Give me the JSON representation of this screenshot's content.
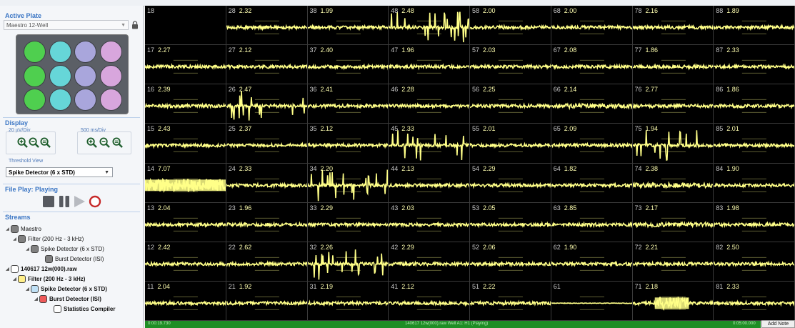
{
  "left_panel": {
    "active_plate": {
      "title": "Active Plate",
      "plate_type": "Maestro 12-Well"
    },
    "plate_wells": [
      {
        "id": "A1",
        "color": "#4fcf4f"
      },
      {
        "id": "A2",
        "color": "#66d6d8"
      },
      {
        "id": "A3",
        "color": "#a9a6dc"
      },
      {
        "id": "A4",
        "color": "#d8a6dd"
      },
      {
        "id": "B1",
        "color": "#4fcf4f"
      },
      {
        "id": "B2",
        "color": "#66d6d8"
      },
      {
        "id": "B3",
        "color": "#a9a6dc"
      },
      {
        "id": "B4",
        "color": "#d8a6dd"
      },
      {
        "id": "C1",
        "color": "#4fcf4f"
      },
      {
        "id": "C2",
        "color": "#66d6d8"
      },
      {
        "id": "C3",
        "color": "#a9a6dc"
      },
      {
        "id": "C4",
        "color": "#d8a6dd"
      }
    ],
    "display": {
      "title": "Display",
      "voltage_scale": "20 µV/Div",
      "time_scale": "500 ms/Div",
      "threshold_view_label": "Threshold View",
      "threshold_view_value": "Spike Detector (6 x STD)"
    },
    "file_play": {
      "title": "File Play: Playing"
    },
    "streams": {
      "title": "Streams",
      "items": [
        {
          "label": "Maestro",
          "color": "#808080",
          "bold": false,
          "arrow": "◢"
        },
        {
          "label": "Filter (200 Hz - 3 kHz)",
          "color": "#808080",
          "bold": false,
          "arrow": "◢"
        },
        {
          "label": "Spike Detector (6 x STD)",
          "color": "#808080",
          "bold": false,
          "arrow": "◢"
        },
        {
          "label": "Burst Detector (ISI)",
          "color": "#808080",
          "bold": false,
          "arrow": ""
        },
        {
          "label": "140617 12w(000).raw",
          "color": "#ffffff",
          "bold": true,
          "arrow": "◢"
        },
        {
          "label": "Filter (200 Hz - 3 kHz)",
          "color": "#ffef8a",
          "bold": true,
          "arrow": "◢"
        },
        {
          "label": "Spike Detector (6 x STD)",
          "color": "#bfe0f5",
          "bold": true,
          "arrow": "◢"
        },
        {
          "label": "Burst Detector (ISI)",
          "color": "#ee5a5a",
          "bold": true,
          "arrow": "◢"
        },
        {
          "label": "Statistics Compiler",
          "color": "#ffffff",
          "bold": true,
          "arrow": ""
        }
      ]
    }
  },
  "electrode_grid": {
    "trace_color": "#ffff88",
    "rows": [
      [
        {
          "id": "18",
          "value": ""
        },
        {
          "id": "28",
          "value": "2.32"
        },
        {
          "id": "38",
          "value": "1.99"
        },
        {
          "id": "48",
          "value": "2.48"
        },
        {
          "id": "58",
          "value": "2.00"
        },
        {
          "id": "68",
          "value": "2.00"
        },
        {
          "id": "78",
          "value": "2.16"
        },
        {
          "id": "88",
          "value": "1.89"
        }
      ],
      [
        {
          "id": "17",
          "value": "2.27"
        },
        {
          "id": "27",
          "value": "2.12"
        },
        {
          "id": "37",
          "value": "2.40"
        },
        {
          "id": "47",
          "value": "1.96"
        },
        {
          "id": "57",
          "value": "2.03"
        },
        {
          "id": "67",
          "value": "2.08"
        },
        {
          "id": "77",
          "value": "1.86"
        },
        {
          "id": "87",
          "value": "2.33"
        }
      ],
      [
        {
          "id": "16",
          "value": "2.39"
        },
        {
          "id": "26",
          "value": "2.47"
        },
        {
          "id": "36",
          "value": "2.41"
        },
        {
          "id": "46",
          "value": "2.28"
        },
        {
          "id": "56",
          "value": "2.25"
        },
        {
          "id": "66",
          "value": "2.14"
        },
        {
          "id": "76",
          "value": "2.77"
        },
        {
          "id": "86",
          "value": "1.86"
        }
      ],
      [
        {
          "id": "15",
          "value": "2.43"
        },
        {
          "id": "25",
          "value": "2.37"
        },
        {
          "id": "35",
          "value": "2.12"
        },
        {
          "id": "45",
          "value": "2.33"
        },
        {
          "id": "55",
          "value": "2.01"
        },
        {
          "id": "65",
          "value": "2.09"
        },
        {
          "id": "75",
          "value": "1.94"
        },
        {
          "id": "85",
          "value": "2.01"
        }
      ],
      [
        {
          "id": "14",
          "value": "7.07"
        },
        {
          "id": "24",
          "value": "2.33"
        },
        {
          "id": "34",
          "value": "2.20"
        },
        {
          "id": "44",
          "value": "2.13"
        },
        {
          "id": "54",
          "value": "2.29"
        },
        {
          "id": "64",
          "value": "1.82"
        },
        {
          "id": "74",
          "value": "2.38"
        },
        {
          "id": "84",
          "value": "1.90"
        }
      ],
      [
        {
          "id": "13",
          "value": "2.04"
        },
        {
          "id": "23",
          "value": "1.96"
        },
        {
          "id": "33",
          "value": "2.29"
        },
        {
          "id": "43",
          "value": "2.03"
        },
        {
          "id": "53",
          "value": "2.05"
        },
        {
          "id": "63",
          "value": "2.85"
        },
        {
          "id": "73",
          "value": "2.17"
        },
        {
          "id": "83",
          "value": "1.98"
        }
      ],
      [
        {
          "id": "12",
          "value": "2.42"
        },
        {
          "id": "22",
          "value": "2.62"
        },
        {
          "id": "32",
          "value": "2.26"
        },
        {
          "id": "42",
          "value": "2.29"
        },
        {
          "id": "52",
          "value": "2.06"
        },
        {
          "id": "62",
          "value": "1.90"
        },
        {
          "id": "72",
          "value": "2.21"
        },
        {
          "id": "82",
          "value": "2.50"
        }
      ],
      [
        {
          "id": "11",
          "value": "2.04"
        },
        {
          "id": "21",
          "value": "1.92"
        },
        {
          "id": "31",
          "value": "2.19"
        },
        {
          "id": "41",
          "value": "2.12"
        },
        {
          "id": "51",
          "value": "2.22"
        },
        {
          "id": "61",
          "value": ""
        },
        {
          "id": "71",
          "value": "2.18"
        },
        {
          "id": "81",
          "value": "2.33"
        }
      ]
    ]
  },
  "status_bar": {
    "time_left": "0:00:19.730",
    "file_info": "140617 12w(000).raw Well A1: H1 (Playing)",
    "time_right": "0:05:00.000",
    "add_note": "Add Note"
  }
}
